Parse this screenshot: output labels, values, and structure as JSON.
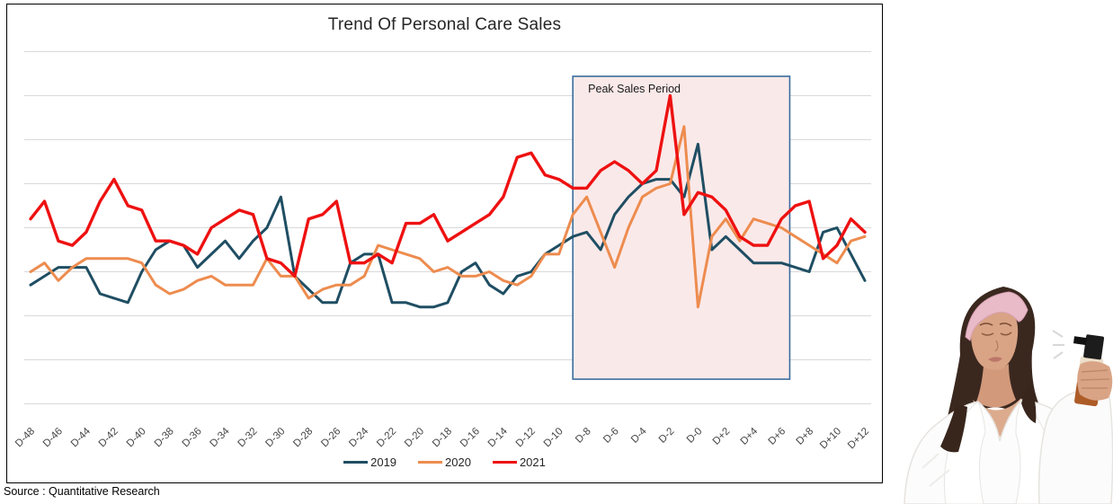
{
  "source_note": "Source : Quantitative Research",
  "illustration": {
    "alt": "Woman in a white bathrobe and pink headband spraying face mist on herself"
  },
  "chart_data": {
    "type": "line",
    "title": "Trend Of Personal Care Sales",
    "xlabel": "",
    "ylabel": "",
    "y_axis_labels_visible": false,
    "ylim": [
      0,
      80
    ],
    "y_gridline_step": 10,
    "gridline_color": "#d9d9d9",
    "legend_position": "bottom",
    "x_days": [
      -48,
      -47,
      -46,
      -45,
      -44,
      -43,
      -42,
      -41,
      -40,
      -39,
      -38,
      -37,
      -36,
      -35,
      -34,
      -33,
      -32,
      -31,
      -30,
      -29,
      -28,
      -27,
      -26,
      -25,
      -24,
      -23,
      -22,
      -21,
      -20,
      -19,
      -18,
      -17,
      -16,
      -15,
      -14,
      -13,
      -12,
      -11,
      -10,
      -9,
      -8,
      -7,
      -6,
      -5,
      -4,
      -3,
      -2,
      -1,
      0,
      1,
      2,
      3,
      4,
      5,
      6,
      7,
      8,
      9,
      10,
      11,
      12
    ],
    "x_tick_labels": [
      "D-48",
      "D-46",
      "D-44",
      "D-42",
      "D-40",
      "D-38",
      "D-36",
      "D-34",
      "D-32",
      "D-30",
      "D-28",
      "D-26",
      "D-24",
      "D-22",
      "D-20",
      "D-18",
      "D-16",
      "D-14",
      "D-12",
      "D-10",
      "D-8",
      "D-6",
      "D-4",
      "D-2",
      "D-0",
      "D+2",
      "D+4",
      "D+6",
      "D+8",
      "D+10",
      "D+12"
    ],
    "series": [
      {
        "name": "2019",
        "color": "#1F4E63",
        "width": 3,
        "values": [
          27,
          29,
          31,
          31,
          31,
          25,
          24,
          23,
          30,
          35,
          37,
          36,
          31,
          34,
          37,
          33,
          37,
          40,
          47,
          29,
          26,
          23,
          23,
          32,
          34,
          34,
          23,
          23,
          22,
          22,
          23,
          30,
          32,
          27,
          25,
          29,
          30,
          34,
          36,
          38,
          39,
          35,
          43,
          47,
          50,
          51,
          51,
          47,
          59,
          35,
          38,
          35,
          32,
          32,
          32,
          31,
          30,
          39,
          40,
          34,
          28
        ]
      },
      {
        "name": "2020",
        "color": "#ED8C4F",
        "width": 3,
        "values": [
          30,
          32,
          28,
          31,
          33,
          33,
          33,
          33,
          32,
          27,
          25,
          26,
          28,
          29,
          27,
          27,
          27,
          33,
          29,
          29,
          24,
          26,
          27,
          27,
          29,
          36,
          35,
          34,
          33,
          30,
          31,
          29,
          29,
          30,
          28,
          27,
          29,
          34,
          34,
          43,
          47,
          39,
          31,
          40,
          47,
          49,
          50,
          63,
          22,
          38,
          42,
          37,
          42,
          41,
          40,
          38,
          36,
          34,
          32,
          37,
          38
        ]
      },
      {
        "name": "2021",
        "color": "#EE1111",
        "width": 3.4,
        "values": [
          42,
          46,
          37,
          36,
          39,
          46,
          51,
          45,
          44,
          37,
          37,
          36,
          34,
          40,
          42,
          44,
          43,
          33,
          32,
          29,
          42,
          43,
          46,
          32,
          32,
          34,
          32,
          41,
          41,
          43,
          37,
          39,
          41,
          43,
          47,
          56,
          57,
          52,
          51,
          49,
          49,
          53,
          55,
          53,
          50,
          53,
          70,
          43,
          48,
          47,
          44,
          38,
          36,
          36,
          42,
          45,
          46,
          33,
          36,
          42,
          39
        ]
      }
    ],
    "annotation_box": {
      "label": "Peak Sales Period",
      "day_from": -9,
      "day_to": 6.6,
      "value_from": 5.6,
      "value_to": 74.4,
      "fill": "#FAE9E9",
      "border_color": "#3A6D9E"
    }
  }
}
